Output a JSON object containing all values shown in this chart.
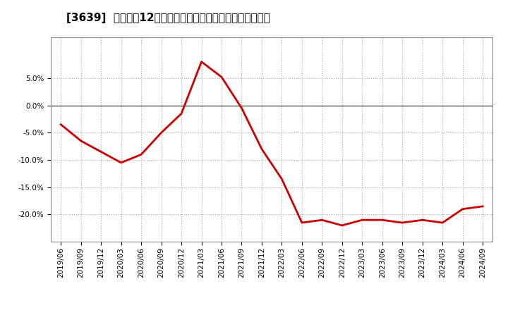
{
  "title": "[3639]  売上高の12か月移動合計の対前年同期増減率の推移",
  "x_labels": [
    "2019/06",
    "2019/09",
    "2019/12",
    "2020/03",
    "2020/06",
    "2020/09",
    "2020/12",
    "2021/03",
    "2021/06",
    "2021/09",
    "2021/12",
    "2022/03",
    "2022/06",
    "2022/09",
    "2022/12",
    "2023/03",
    "2023/06",
    "2023/09",
    "2023/12",
    "2024/03",
    "2024/06",
    "2024/09"
  ],
  "values": [
    -3.5,
    -6.5,
    -8.5,
    -10.5,
    -9.0,
    -5.0,
    -1.5,
    8.0,
    5.2,
    -0.5,
    -8.0,
    -13.5,
    -21.5,
    -21.0,
    -22.0,
    -21.0,
    -21.0,
    -21.5,
    -21.0,
    -21.5,
    -19.0,
    -18.5
  ],
  "line_color": "#cc0000",
  "background_color": "#ffffff",
  "plot_bg_color": "#ffffff",
  "grid_color": "#aaaaaa",
  "ylim": [
    -25.0,
    12.5
  ],
  "yticks": [
    -20.0,
    -15.0,
    -10.0,
    -5.0,
    0.0,
    5.0
  ],
  "title_fontsize": 11,
  "tick_fontsize": 7.5,
  "line_width": 2.0
}
